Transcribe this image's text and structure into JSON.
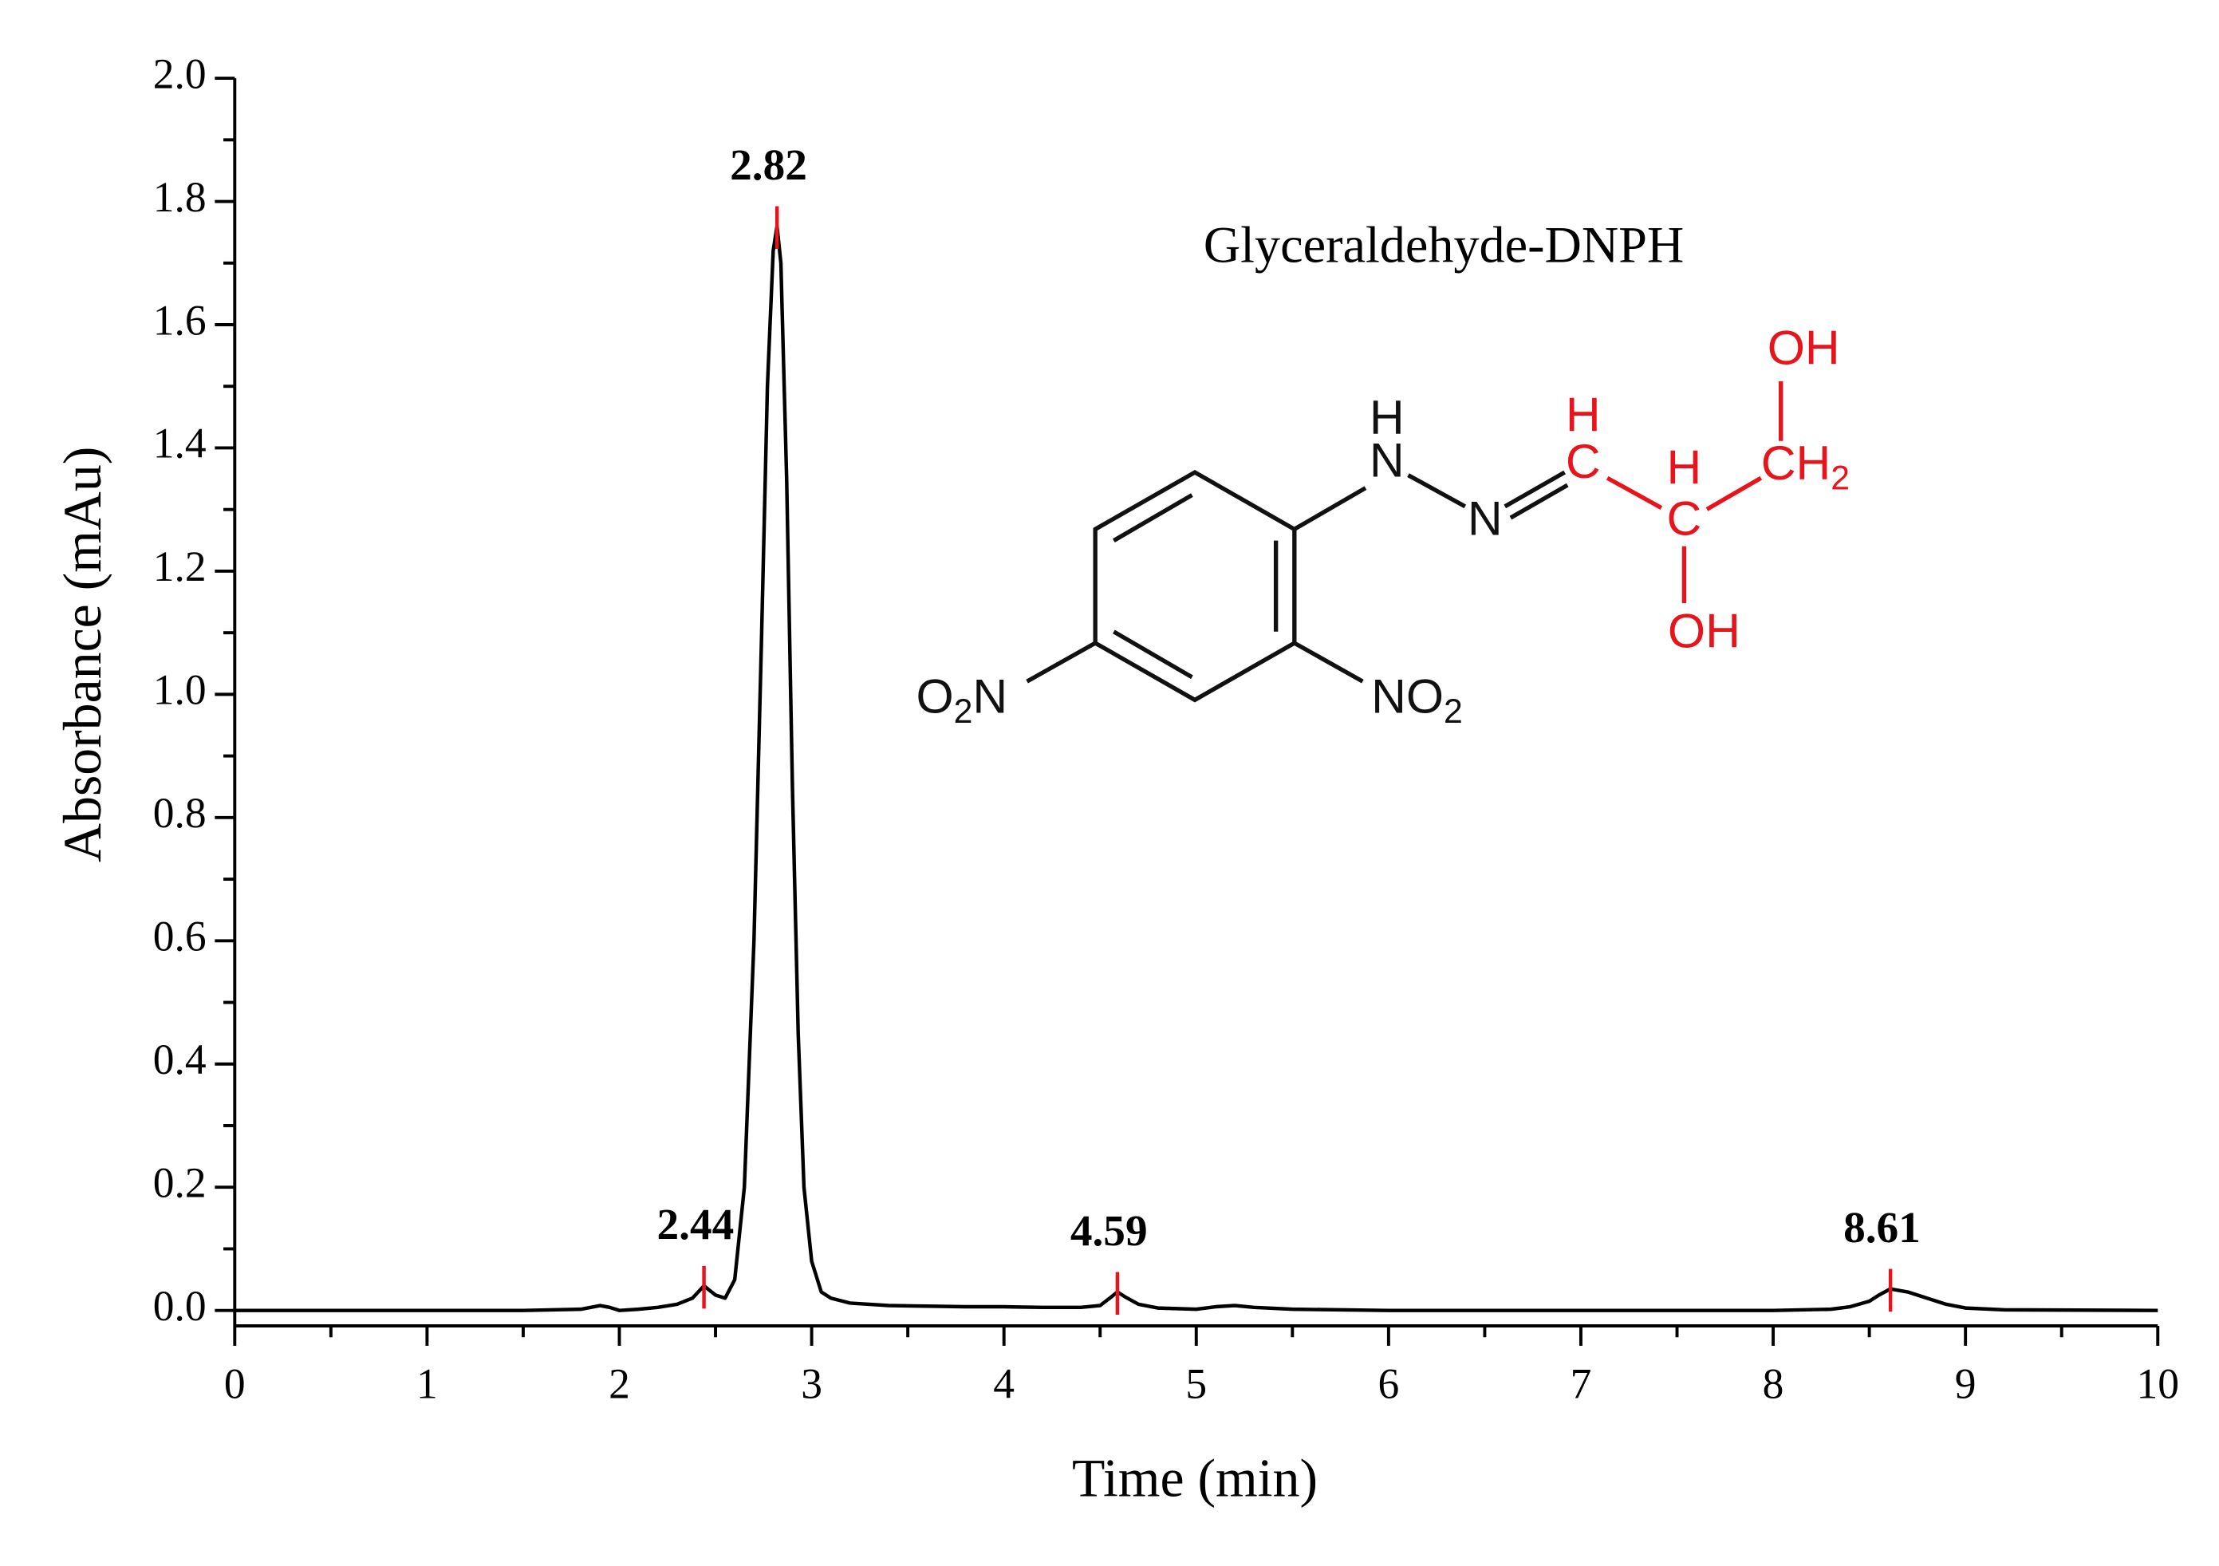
{
  "chart_data": {
    "type": "line",
    "xlabel": "Time (min)",
    "ylabel": "Absorbance (mAu)",
    "x": [
      0,
      0.5,
      1,
      1.5,
      1.8,
      1.9,
      1.95,
      2.0,
      2.1,
      2.2,
      2.3,
      2.38,
      2.44,
      2.5,
      2.55,
      2.6,
      2.65,
      2.7,
      2.74,
      2.77,
      2.8,
      2.82,
      2.84,
      2.87,
      2.9,
      2.93,
      2.96,
      3.0,
      3.05,
      3.1,
      3.2,
      3.4,
      3.6,
      3.8,
      4.0,
      4.2,
      4.4,
      4.5,
      4.55,
      4.59,
      4.63,
      4.7,
      4.8,
      4.9,
      5.0,
      5.1,
      5.2,
      5.3,
      5.5,
      6,
      7,
      8,
      8.3,
      8.4,
      8.5,
      8.55,
      8.61,
      8.7,
      8.8,
      8.9,
      9.0,
      9.2,
      10
    ],
    "values": [
      0,
      0,
      0,
      0,
      0.002,
      0.008,
      0.005,
      0,
      0.002,
      0.005,
      0.01,
      0.02,
      0.04,
      0.025,
      0.02,
      0.05,
      0.2,
      0.6,
      1.1,
      1.5,
      1.72,
      1.76,
      1.7,
      1.35,
      0.85,
      0.45,
      0.2,
      0.08,
      0.03,
      0.02,
      0.012,
      0.008,
      0.007,
      0.006,
      0.006,
      0.005,
      0.005,
      0.008,
      0.02,
      0.03,
      0.022,
      0.01,
      0.004,
      0.003,
      0.002,
      0.006,
      0.008,
      0.005,
      0.002,
      0,
      0,
      0,
      0.002,
      0.006,
      0.015,
      0.025,
      0.035,
      0.03,
      0.02,
      0.01,
      0.004,
      0.001,
      0
    ],
    "color": "#000000",
    "annotations": {
      "x": [
        2.44,
        2.82,
        4.59,
        8.61
      ],
      "y": [
        0.04,
        1.76,
        0.03,
        0.035
      ],
      "color": "#e8141b"
    },
    "xlim": [
      0,
      10
    ],
    "xticks": [
      0,
      1,
      2,
      3,
      4,
      5,
      6,
      7,
      8,
      9,
      10
    ],
    "ylim": [
      -0.025,
      2.0
    ],
    "yticks": [
      {
        "value": 0,
        "label": "0.0"
      },
      0.2,
      0.4,
      0.6,
      0.8,
      {
        "value": 1,
        "label": "1.0"
      },
      1.2,
      1.4,
      1.6,
      1.8,
      {
        "value": 2,
        "label": "2.0"
      }
    ],
    "grid": false
  },
  "structure": {
    "title": "Glyceraldehyde-DNPH",
    "atoms": [
      "H",
      "N",
      "N",
      "H",
      "C",
      "H",
      "C",
      "OH",
      "CH",
      "2",
      "OH",
      "O",
      "2",
      "N",
      "NO",
      "2"
    ]
  }
}
